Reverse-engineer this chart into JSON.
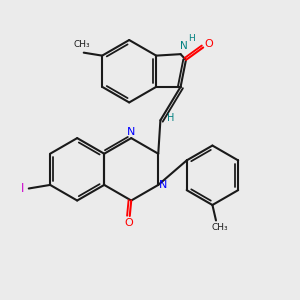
{
  "bg_color": "#ebebeb",
  "bond_color": "#1a1a1a",
  "N_color": "#0000ff",
  "O_color": "#ff0000",
  "I_color": "#cc00cc",
  "NH_color": "#008080",
  "H_color": "#008080",
  "lw": 1.5,
  "fig_w": 3.0,
  "fig_h": 3.0,
  "xlim": [
    0,
    10
  ],
  "ylim": [
    0,
    10
  ]
}
